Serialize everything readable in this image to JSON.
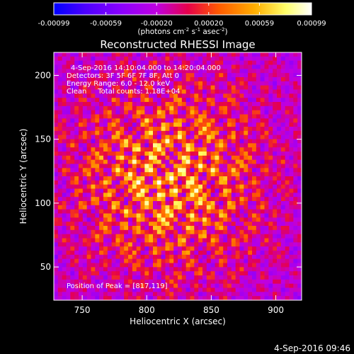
{
  "chart_data": {
    "type": "heatmap",
    "title": "Reconstructed RHESSI Image",
    "xlabel": "Heliocentric X (arcsec)",
    "ylabel": "Heliocentric Y (arcsec)",
    "xlim": [
      728,
      920
    ],
    "ylim": [
      24,
      218
    ],
    "xticks": [
      750,
      800,
      850,
      900
    ],
    "yticks": [
      50,
      100,
      150,
      200
    ],
    "colorbar": {
      "ticks": [
        "-0.00099",
        "-0.00059",
        "-0.00020",
        "0.00020",
        "0.00059",
        "0.00099"
      ],
      "units_main": "(photons cm",
      "units_sup1": "-2",
      "units_mid1": " s",
      "units_sup2": "-1",
      "units_mid2": " asec",
      "units_sup3": "-2",
      "units_end": ")",
      "range": [
        -0.00099,
        0.00099
      ],
      "colormap": [
        "#0000ff",
        "#4b00ff",
        "#8a00ff",
        "#c000e0",
        "#e6004a",
        "#ff5a00",
        "#ffae00",
        "#ffff6a",
        "#ffffff"
      ]
    },
    "peak": [
      817,
      119
    ],
    "annotations": [
      "4-Sep-2016 14:10:04.000 to 14:20:04.000",
      "Detectors: 3F 5F 6F 7F 8F, Att 0",
      "Energy Range: 6.0 - 12.0 keV",
      "Clean     Total counts: 1.18E+04",
      "Position of Peak = [817,119]"
    ]
  },
  "footer": {
    "timestamp": "4-Sep-2016 09:46"
  }
}
